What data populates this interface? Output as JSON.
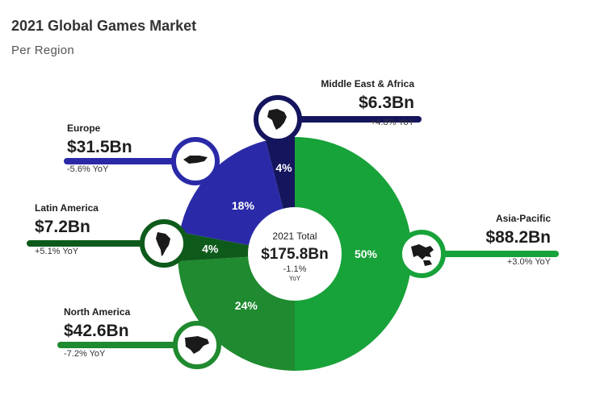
{
  "title": "2021 Global Games Market",
  "subtitle": "Per Region",
  "chart_data": {
    "type": "pie",
    "title": "2021 Global Games Market",
    "subtitle": "Per Region",
    "total": {
      "label": "2021 Total",
      "value": "$175.8Bn",
      "change": "-1.1%",
      "change_unit": "YoY"
    },
    "slices": [
      {
        "name": "Asia-Pacific",
        "percent": 50,
        "percent_label": "50%",
        "value": 88.2,
        "value_label": "$88.2Bn",
        "yoy": "+3.0% YoY",
        "color": "#18a23a"
      },
      {
        "name": "North America",
        "percent": 24,
        "percent_label": "24%",
        "value": 42.6,
        "value_label": "$42.6Bn",
        "yoy": "-7.2% YoY",
        "color": "#1f8a2f"
      },
      {
        "name": "Latin America",
        "percent": 4,
        "percent_label": "4%",
        "value": 7.2,
        "value_label": "$7.2Bn",
        "yoy": "+5.1% YoY",
        "color": "#0e5a1b"
      },
      {
        "name": "Europe",
        "percent": 18,
        "percent_label": "18%",
        "value": 31.5,
        "value_label": "$31.5Bn",
        "yoy": "-5.6% YoY",
        "color": "#2a2aa8"
      },
      {
        "name": "Middle East & Africa",
        "percent": 4,
        "percent_label": "4%",
        "value": 6.3,
        "value_label": "$6.3Bn",
        "yoy": "+4.8% YoY",
        "color": "#15155e"
      }
    ]
  },
  "icons": {
    "asia_pacific": "asia-pacific-map-icon",
    "north_america": "north-america-map-icon",
    "latin_america": "latin-america-map-icon",
    "europe": "europe-map-icon",
    "middle_east_africa": "africa-map-icon"
  }
}
